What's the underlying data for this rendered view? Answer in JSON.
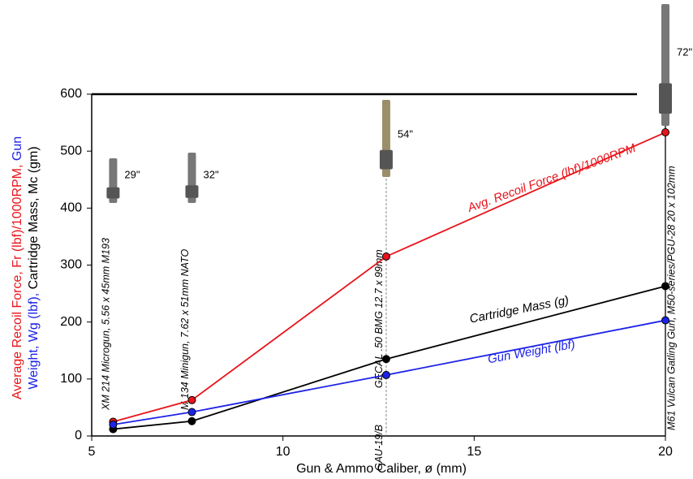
{
  "chart_data": {
    "type": "line",
    "y_label_parts": [
      {
        "text": "Average Recoil Force, Fr (lbf)/1000RPM,",
        "color": "#e8141b",
        "line": 0
      },
      {
        "text": "Gun",
        "color": "#1d23e6",
        "line": 0
      },
      {
        "text": "Weight, Wg (lbf),",
        "color": "#1d23e6",
        "line": 1
      },
      {
        "text": "Cartridge Mass, Mc (gm)",
        "color": "#000000",
        "line": 1
      }
    ],
    "x_label": "Gun & Ammo Caliber, ø (mm)",
    "x": [
      5.56,
      7.62,
      12.7,
      20
    ],
    "series": [
      {
        "name": "Avg. Recoil Force (lbf)/1000RPM",
        "color": "#e8141b",
        "values": [
          25,
          63,
          315,
          533
        ]
      },
      {
        "name": "Cartridge Mass (g)",
        "color": "#000000",
        "values": [
          12,
          26,
          135,
          263
        ]
      },
      {
        "name": "Gun Weight (lbf)",
        "color": "#1d23e6",
        "values": [
          20,
          42,
          107,
          203
        ]
      }
    ],
    "guns": [
      {
        "name": "XM 214 Microgun, 5.56 x 45mm M193",
        "length": "29\""
      },
      {
        "name": "M 134 Minigun, 7.62 x 51mm NATO",
        "length": "32\""
      },
      {
        "name": "GECAL .50 BMG 12.7 x 99mm",
        "prefix": "GAU-19/B",
        "length": "54\""
      },
      {
        "name": "M61 Vulcan Gatling Gun, M50-series/PGU-28 20 x 102mm",
        "length": "72\""
      }
    ],
    "xlim": [
      5,
      20
    ],
    "xticks": [
      5,
      10,
      15,
      20
    ],
    "ylim": [
      0,
      600
    ],
    "yticks": [
      0,
      100,
      200,
      300,
      400,
      500,
      600
    ]
  }
}
